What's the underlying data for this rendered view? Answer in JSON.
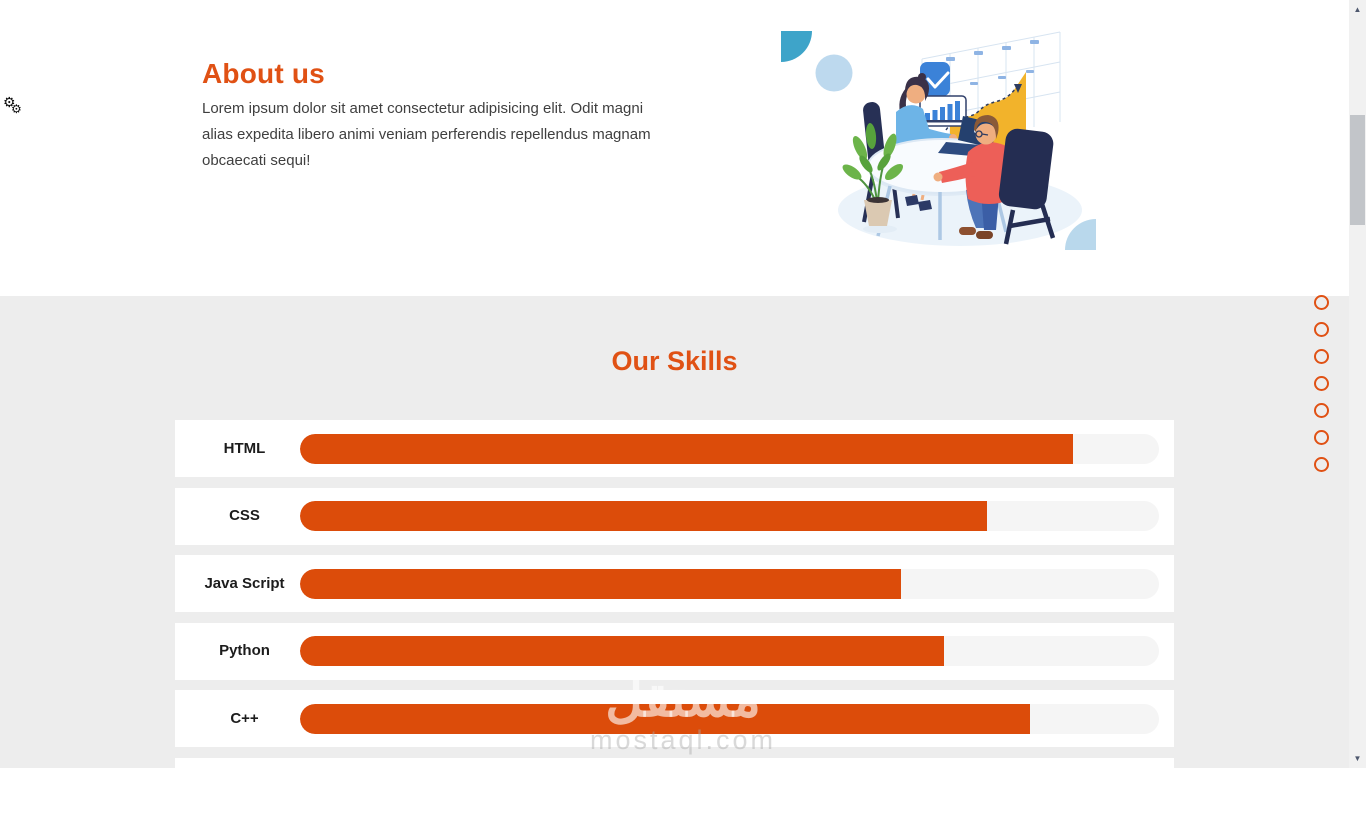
{
  "colors": {
    "accent": "#e05114",
    "bar_fill": "#dc4c0a",
    "bar_track": "#f5f5f5",
    "section_bg": "#ededed",
    "card_bg": "#ffffff",
    "illustration_yellow": "#f2b32b",
    "illustration_blue": "#3b82d8",
    "illustration_teal": "#3ea4c9"
  },
  "about": {
    "title": "About us",
    "description": "Lorem ipsum dolor sit amet consectetur adipisicing elit. Odit magni alias expedita libero animi veniam perferendis repellendus magnam obcaecati sequi!"
  },
  "skills": {
    "title": "Our Skills",
    "items": [
      {
        "label": "HTML",
        "percent": 90
      },
      {
        "label": "CSS",
        "percent": 80
      },
      {
        "label": "Java Script",
        "percent": 70
      },
      {
        "label": "Python",
        "percent": 75
      },
      {
        "label": "C++",
        "percent": 85
      }
    ]
  },
  "nav_dots": {
    "count": 7
  },
  "watermark": {
    "arabic": "مستقل",
    "domain": "mostaql.com"
  },
  "browser": {
    "gear_icon": "⚙",
    "scroll_up": "▲",
    "scroll_down": "▼"
  }
}
